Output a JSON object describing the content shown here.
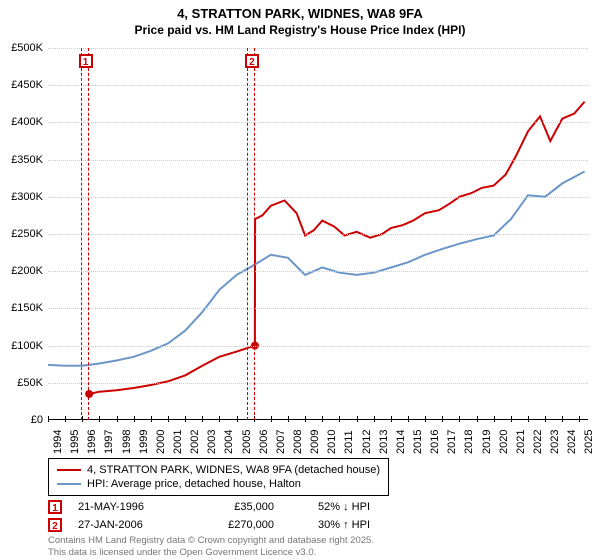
{
  "title_line1": "4, STRATTON PARK, WIDNES, WA8 9FA",
  "title_line2": "Price paid vs. HM Land Registry's House Price Index (HPI)",
  "chart": {
    "type": "line",
    "x_start": 1994,
    "x_end": 2025.5,
    "y_min": 0,
    "y_max": 500000,
    "y_step": 50000,
    "y_labels": [
      "£0",
      "£50K",
      "£100K",
      "£150K",
      "£200K",
      "£250K",
      "£300K",
      "£350K",
      "£400K",
      "£450K",
      "£500K"
    ],
    "x_labels": [
      "1994",
      "1995",
      "1996",
      "1997",
      "1998",
      "1999",
      "2000",
      "2001",
      "2002",
      "2003",
      "2004",
      "2005",
      "2006",
      "2007",
      "2008",
      "2009",
      "2010",
      "2011",
      "2012",
      "2013",
      "2014",
      "2015",
      "2016",
      "2017",
      "2018",
      "2019",
      "2020",
      "2021",
      "2022",
      "2023",
      "2024",
      "2025"
    ],
    "grid_color": "#cccccc",
    "background_color": "#ffffff",
    "axis_color": "#000000",
    "series": [
      {
        "id": "price_paid",
        "label": "4, STRATTON PARK, WIDNES, WA8 9FA (detached house)",
        "color": "#cc0000",
        "width": 2,
        "points": [
          [
            1996.4,
            35000
          ],
          [
            1997,
            38000
          ],
          [
            1998,
            40000
          ],
          [
            1999,
            43000
          ],
          [
            2000,
            47000
          ],
          [
            2001,
            52000
          ],
          [
            2002,
            60000
          ],
          [
            2003,
            73000
          ],
          [
            2004,
            85000
          ],
          [
            2005,
            92000
          ],
          [
            2006.07,
            100000
          ],
          [
            2006.08,
            270000
          ],
          [
            2006.5,
            275000
          ],
          [
            2007,
            288000
          ],
          [
            2007.8,
            295000
          ],
          [
            2008.5,
            278000
          ],
          [
            2009,
            248000
          ],
          [
            2009.5,
            255000
          ],
          [
            2010,
            268000
          ],
          [
            2010.7,
            260000
          ],
          [
            2011.3,
            248000
          ],
          [
            2012,
            253000
          ],
          [
            2012.8,
            245000
          ],
          [
            2013.5,
            250000
          ],
          [
            2014,
            258000
          ],
          [
            2014.7,
            262000
          ],
          [
            2015.3,
            268000
          ],
          [
            2016,
            278000
          ],
          [
            2016.8,
            282000
          ],
          [
            2017.5,
            292000
          ],
          [
            2018,
            300000
          ],
          [
            2018.7,
            305000
          ],
          [
            2019.3,
            312000
          ],
          [
            2020,
            315000
          ],
          [
            2020.7,
            330000
          ],
          [
            2021.3,
            355000
          ],
          [
            2022,
            388000
          ],
          [
            2022.7,
            408000
          ],
          [
            2023.3,
            375000
          ],
          [
            2024,
            405000
          ],
          [
            2024.7,
            412000
          ],
          [
            2025.3,
            428000
          ]
        ]
      },
      {
        "id": "hpi",
        "label": "HPI: Average price, detached house, Halton",
        "color": "#6c96c8",
        "width": 2,
        "points": [
          [
            1994,
            74000
          ],
          [
            1995,
            73000
          ],
          [
            1996,
            73000
          ],
          [
            1997,
            76000
          ],
          [
            1998,
            80000
          ],
          [
            1999,
            85000
          ],
          [
            2000,
            93000
          ],
          [
            2001,
            103000
          ],
          [
            2002,
            120000
          ],
          [
            2003,
            145000
          ],
          [
            2004,
            175000
          ],
          [
            2005,
            195000
          ],
          [
            2006,
            208000
          ],
          [
            2007,
            222000
          ],
          [
            2008,
            218000
          ],
          [
            2009,
            195000
          ],
          [
            2010,
            205000
          ],
          [
            2011,
            198000
          ],
          [
            2012,
            195000
          ],
          [
            2013,
            198000
          ],
          [
            2014,
            205000
          ],
          [
            2015,
            212000
          ],
          [
            2016,
            222000
          ],
          [
            2017,
            230000
          ],
          [
            2018,
            237000
          ],
          [
            2019,
            243000
          ],
          [
            2020,
            248000
          ],
          [
            2021,
            270000
          ],
          [
            2022,
            302000
          ],
          [
            2023,
            300000
          ],
          [
            2024,
            318000
          ],
          [
            2025.3,
            334000
          ]
        ]
      }
    ],
    "sale_markers": [
      {
        "n": "1",
        "x": 1996.4,
        "color": "#cc0000",
        "band_start": 1995.9,
        "band_end": 1996.4
      },
      {
        "n": "2",
        "x": 2006.07,
        "color": "#cc0000",
        "band_start": 2005.6,
        "band_end": 2006.07
      }
    ]
  },
  "legend": {
    "items": [
      {
        "color": "#cc0000",
        "text": "4, STRATTON PARK, WIDNES, WA8 9FA (detached house)"
      },
      {
        "color": "#6c96c8",
        "text": "HPI: Average price, detached house, Halton"
      }
    ]
  },
  "sales": [
    {
      "n": "1",
      "color": "#cc0000",
      "date": "21-MAY-1996",
      "price": "£35,000",
      "diff": "52% ↓ HPI"
    },
    {
      "n": "2",
      "color": "#cc0000",
      "date": "27-JAN-2006",
      "price": "£270,000",
      "diff": "30% ↑ HPI"
    }
  ],
  "footer_line1": "Contains HM Land Registry data © Crown copyright and database right 2025.",
  "footer_line2": "This data is licensed under the Open Government Licence v3.0."
}
